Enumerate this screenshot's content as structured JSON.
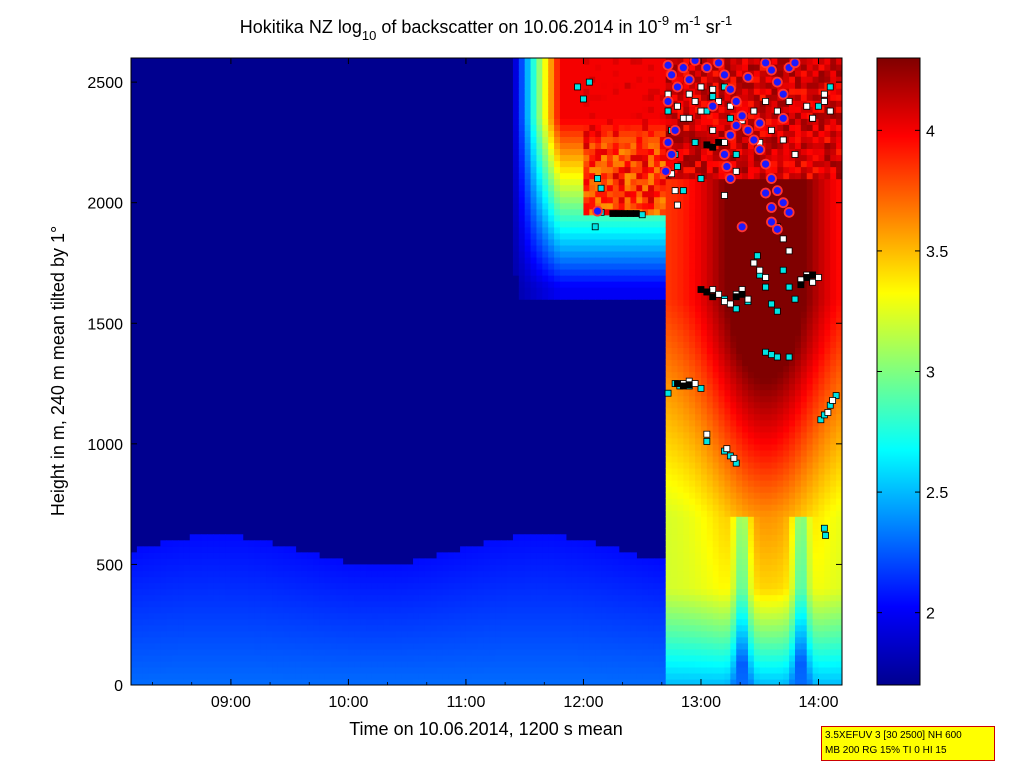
{
  "chart_data": {
    "type": "heatmap",
    "title": {
      "prefix": "Hokitika NZ log",
      "sub": "10",
      "mid": " of backscatter on 10.06.2014 in 10",
      "exp1": "-9",
      "mid2": " m",
      "exp2": "-1",
      "mid3": " sr",
      "exp3": "-1"
    },
    "xlabel": "Time on 10.06.2014, 1200 s mean",
    "ylabel": "Height in m, 240 m mean tilted by 1°",
    "xlim": [
      8.15,
      14.2
    ],
    "ylim": [
      0,
      2600
    ],
    "x_ticks": [
      {
        "value": 9,
        "label": "09:00"
      },
      {
        "value": 10,
        "label": "10:00"
      },
      {
        "value": 11,
        "label": "11:00"
      },
      {
        "value": 12,
        "label": "12:00"
      },
      {
        "value": 13,
        "label": "13:00"
      },
      {
        "value": 14,
        "label": "14:00"
      }
    ],
    "y_ticks": [
      0,
      500,
      1000,
      1500,
      2000,
      2500
    ],
    "colorbar": {
      "range": [
        1.7,
        4.3
      ],
      "ticks": [
        {
          "value": 2,
          "label": "2"
        },
        {
          "value": 2.5,
          "label": "2.5"
        },
        {
          "value": 3,
          "label": "3"
        },
        {
          "value": 3.5,
          "label": "3.5"
        },
        {
          "value": 4,
          "label": "4"
        }
      ]
    },
    "markers": {
      "cyan_squares": [
        [
          11.95,
          2480
        ],
        [
          12.0,
          2430
        ],
        [
          12.05,
          2500
        ],
        [
          12.12,
          2100
        ],
        [
          12.15,
          2060
        ],
        [
          12.1,
          1900
        ],
        [
          12.72,
          2380
        ],
        [
          12.75,
          2300
        ],
        [
          12.78,
          2200
        ],
        [
          12.8,
          2150
        ],
        [
          12.85,
          2050
        ],
        [
          12.95,
          2250
        ],
        [
          13.0,
          2100
        ],
        [
          13.05,
          2380
        ],
        [
          13.1,
          2440
        ],
        [
          13.2,
          2480
        ],
        [
          13.25,
          2350
        ],
        [
          13.3,
          2200
        ],
        [
          13.48,
          1780
        ],
        [
          13.5,
          1700
        ],
        [
          13.55,
          1650
        ],
        [
          13.6,
          1580
        ],
        [
          13.65,
          1550
        ],
        [
          13.7,
          1720
        ],
        [
          13.75,
          1650
        ],
        [
          13.8,
          1600
        ],
        [
          13.85,
          1680
        ],
        [
          12.72,
          1210
        ],
        [
          12.78,
          1250
        ],
        [
          12.82,
          1240
        ],
        [
          12.9,
          1240
        ],
        [
          13.0,
          1230
        ],
        [
          13.05,
          1010
        ],
        [
          13.2,
          970
        ],
        [
          13.25,
          950
        ],
        [
          13.3,
          920
        ],
        [
          13.55,
          1380
        ],
        [
          13.6,
          1370
        ],
        [
          13.65,
          1360
        ],
        [
          13.75,
          1360
        ],
        [
          14.02,
          1100
        ],
        [
          14.05,
          1120
        ],
        [
          14.1,
          1160
        ],
        [
          14.15,
          1200
        ],
        [
          14.05,
          650
        ],
        [
          14.06,
          620
        ],
        [
          14.1,
          2480
        ],
        [
          13.95,
          2350
        ],
        [
          14.0,
          2400
        ],
        [
          13.9,
          1690
        ],
        [
          13.95,
          1700
        ],
        [
          13.3,
          1560
        ],
        [
          13.4,
          1590
        ],
        [
          13.2,
          1600
        ],
        [
          12.5,
          1950
        ],
        [
          12.15,
          1960
        ]
      ],
      "white_squares": [
        [
          12.72,
          2450
        ],
        [
          12.8,
          2400
        ],
        [
          12.85,
          2350
        ],
        [
          12.9,
          2450
        ],
        [
          12.95,
          2420
        ],
        [
          13.0,
          2380
        ],
        [
          13.1,
          2300
        ],
        [
          13.15,
          2420
        ],
        [
          13.2,
          2250
        ],
        [
          13.25,
          2400
        ],
        [
          13.35,
          2340
        ],
        [
          13.4,
          2300
        ],
        [
          13.45,
          2380
        ],
        [
          13.5,
          2250
        ],
        [
          13.55,
          2420
        ],
        [
          13.6,
          2300
        ],
        [
          13.65,
          2380
        ],
        [
          13.7,
          2260
        ],
        [
          13.75,
          2420
        ],
        [
          13.8,
          2200
        ],
        [
          13.9,
          2400
        ],
        [
          13.95,
          2350
        ],
        [
          14.05,
          2450
        ],
        [
          14.1,
          2380
        ],
        [
          12.75,
          2120
        ],
        [
          12.78,
          2050
        ],
        [
          12.8,
          1990
        ],
        [
          13.2,
          2030
        ],
        [
          13.3,
          2130
        ],
        [
          13.45,
          1750
        ],
        [
          13.5,
          1720
        ],
        [
          13.55,
          1690
        ],
        [
          13.65,
          1900
        ],
        [
          13.7,
          1850
        ],
        [
          13.75,
          1800
        ],
        [
          13.05,
          1630
        ],
        [
          13.1,
          1640
        ],
        [
          13.15,
          1620
        ],
        [
          13.2,
          1590
        ],
        [
          13.25,
          1580
        ],
        [
          13.3,
          1620
        ],
        [
          13.35,
          1640
        ],
        [
          13.4,
          1600
        ],
        [
          13.85,
          1680
        ],
        [
          13.9,
          1700
        ],
        [
          13.95,
          1670
        ],
        [
          14.0,
          1690
        ],
        [
          12.85,
          1250
        ],
        [
          12.9,
          1260
        ],
        [
          12.95,
          1250
        ],
        [
          13.05,
          1040
        ],
        [
          13.22,
          980
        ],
        [
          13.28,
          940
        ],
        [
          14.08,
          1130
        ],
        [
          14.12,
          1180
        ],
        [
          14.05,
          2420
        ],
        [
          12.9,
          2350
        ],
        [
          13.0,
          2480
        ],
        [
          13.1,
          2470
        ]
      ],
      "black_squares": [
        [
          12.25,
          1955
        ],
        [
          12.3,
          1955
        ],
        [
          12.35,
          1955
        ],
        [
          12.4,
          1955
        ],
        [
          12.45,
          1955
        ],
        [
          12.8,
          1250
        ],
        [
          12.85,
          1240
        ],
        [
          12.9,
          1245
        ],
        [
          13.0,
          1640
        ],
        [
          13.05,
          1630
        ],
        [
          13.1,
          1610
        ],
        [
          13.3,
          1610
        ],
        [
          13.35,
          1620
        ],
        [
          13.9,
          1690
        ],
        [
          13.95,
          1700
        ],
        [
          13.85,
          1660
        ],
        [
          13.05,
          2240
        ],
        [
          13.1,
          2230
        ],
        [
          13.15,
          2250
        ]
      ],
      "cloud_circles": [
        [
          12.12,
          1965
        ],
        [
          12.72,
          2570
        ],
        [
          12.75,
          2530
        ],
        [
          12.8,
          2480
        ],
        [
          12.72,
          2420
        ],
        [
          12.78,
          2300
        ],
        [
          12.72,
          2250
        ],
        [
          12.75,
          2200
        ],
        [
          12.85,
          2560
        ],
        [
          12.9,
          2510
        ],
        [
          12.95,
          2590
        ],
        [
          13.05,
          2560
        ],
        [
          13.15,
          2580
        ],
        [
          13.2,
          2530
        ],
        [
          13.25,
          2470
        ],
        [
          13.3,
          2420
        ],
        [
          13.35,
          2360
        ],
        [
          13.4,
          2300
        ],
        [
          13.45,
          2260
        ],
        [
          13.5,
          2220
        ],
        [
          13.55,
          2160
        ],
        [
          13.6,
          2100
        ],
        [
          13.65,
          2050
        ],
        [
          13.7,
          2000
        ],
        [
          13.75,
          1960
        ],
        [
          13.6,
          1920
        ],
        [
          13.65,
          1890
        ],
        [
          13.55,
          2580
        ],
        [
          13.6,
          2550
        ],
        [
          13.65,
          2500
        ],
        [
          13.7,
          2450
        ],
        [
          13.75,
          2560
        ],
        [
          13.8,
          2580
        ],
        [
          13.3,
          2320
        ],
        [
          13.25,
          2280
        ],
        [
          13.2,
          2200
        ],
        [
          13.22,
          2150
        ],
        [
          13.25,
          2100
        ],
        [
          13.5,
          2330
        ],
        [
          13.55,
          2040
        ],
        [
          13.6,
          1980
        ],
        [
          12.7,
          2130
        ],
        [
          13.1,
          2400
        ],
        [
          13.4,
          2520
        ],
        [
          13.7,
          2350
        ],
        [
          13.35,
          1900
        ]
      ]
    }
  },
  "info_box": {
    "line1": "3.5XEFUV 3 [30 2500] NH 600",
    "line2": "MB 200 RG 15% TI 0 HI 15"
  }
}
